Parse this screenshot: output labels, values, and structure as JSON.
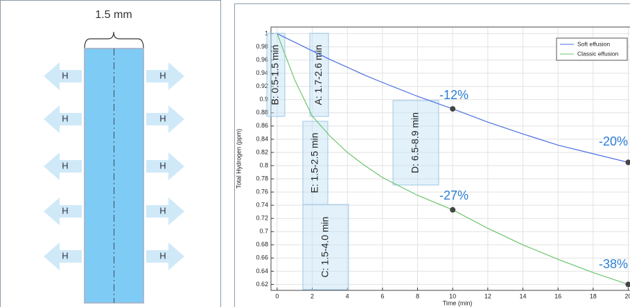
{
  "diagram": {
    "width_label": "1.5 mm",
    "flux_label": "H"
  },
  "chart_data": {
    "type": "line",
    "x_label": "Time (min)",
    "y_label": "Total Hydrogen (ppm)",
    "x": [
      0,
      1,
      2,
      3,
      4,
      5,
      6,
      8,
      10,
      12,
      14,
      16,
      18,
      20
    ],
    "series": [
      {
        "name": "Soft effusion",
        "color": "#4a6fe0",
        "values": [
          1,
          0.987,
          0.974,
          0.961,
          0.949,
          0.937,
          0.926,
          0.905,
          0.886,
          0.866,
          0.848,
          0.831,
          0.818,
          0.805
        ]
      },
      {
        "name": "Classic effusion",
        "color": "#6cc46c",
        "values": [
          1,
          0.93,
          0.875,
          0.845,
          0.82,
          0.8,
          0.782,
          0.755,
          0.733,
          0.705,
          0.68,
          0.658,
          0.638,
          0.62
        ]
      }
    ],
    "xlim": [
      -0.35,
      20.1
    ],
    "xticks": [
      0,
      2,
      4,
      6,
      8,
      10,
      12,
      14,
      16,
      18,
      20
    ],
    "ylim": [
      0.611,
      1.01
    ],
    "yticks": [
      0.62,
      0.64,
      0.66,
      0.68,
      0.7,
      0.72,
      0.74,
      0.76,
      0.78,
      0.8,
      0.82,
      0.84,
      0.86,
      0.88,
      0.9,
      0.92,
      0.94,
      0.96,
      0.98,
      1
    ],
    "grid": true,
    "legend": "top-right",
    "markers": [
      {
        "x": 10,
        "y": 0.886,
        "text": "-12%"
      },
      {
        "x": 20,
        "y": 0.805,
        "text": "-20%"
      },
      {
        "x": 10,
        "y": 0.733,
        "text": "-27%"
      },
      {
        "x": 20,
        "y": 0.62,
        "text": "-38%"
      }
    ],
    "windows": [
      "B: 0.5-1.5 min",
      "A: 1.7-2.6 min",
      "E: 1.5-2.5 min",
      "C: 1.5-4.0 min",
      "D: 6.5-8.9 min"
    ]
  }
}
